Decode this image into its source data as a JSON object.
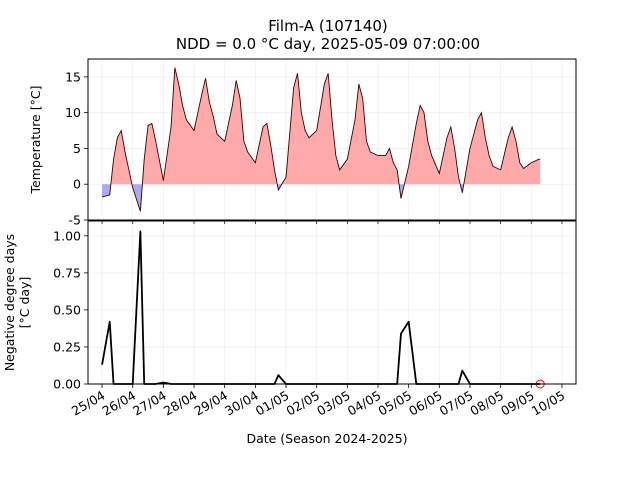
{
  "title": "Film-A (107140)",
  "subtitle": "NDD = 0.0 °C day, 2025-05-09 07:00:00",
  "chart_data": [
    {
      "type": "area",
      "ylabel": "Temperature [°C]",
      "ylim": [
        -5,
        17.5
      ],
      "yticks": [
        -5,
        0,
        5,
        10,
        15
      ],
      "grid": true,
      "fill_colors": {
        "positive": "#ffaaaa",
        "negative": "#aaaaee"
      },
      "x": [
        "2025-04-25 00:00",
        "2025-04-25 06:00",
        "2025-04-25 09:00",
        "2025-04-25 12:00",
        "2025-04-25 15:00",
        "2025-04-25 18:00",
        "2025-04-26 00:00",
        "2025-04-26 06:00",
        "2025-04-26 09:00",
        "2025-04-26 12:00",
        "2025-04-26 15:00",
        "2025-04-26 18:00",
        "2025-04-27 00:00",
        "2025-04-27 06:00",
        "2025-04-27 09:00",
        "2025-04-27 12:00",
        "2025-04-27 15:00",
        "2025-04-27 18:00",
        "2025-04-28 00:00",
        "2025-04-28 06:00",
        "2025-04-28 09:00",
        "2025-04-28 12:00",
        "2025-04-28 15:00",
        "2025-04-28 18:00",
        "2025-04-29 00:00",
        "2025-04-29 06:00",
        "2025-04-29 09:00",
        "2025-04-29 12:00",
        "2025-04-29 15:00",
        "2025-04-29 18:00",
        "2025-04-30 00:00",
        "2025-04-30 06:00",
        "2025-04-30 09:00",
        "2025-04-30 12:00",
        "2025-04-30 15:00",
        "2025-04-30 18:00",
        "2025-05-01 00:00",
        "2025-05-01 06:00",
        "2025-05-01 09:00",
        "2025-05-01 12:00",
        "2025-05-01 15:00",
        "2025-05-01 18:00",
        "2025-05-02 00:00",
        "2025-05-02 06:00",
        "2025-05-02 09:00",
        "2025-05-02 12:00",
        "2025-05-02 15:00",
        "2025-05-02 18:00",
        "2025-05-03 00:00",
        "2025-05-03 06:00",
        "2025-05-03 09:00",
        "2025-05-03 12:00",
        "2025-05-03 15:00",
        "2025-05-03 18:00",
        "2025-05-04 00:00",
        "2025-05-04 06:00",
        "2025-05-04 09:00",
        "2025-05-04 12:00",
        "2025-05-04 15:00",
        "2025-05-04 18:00",
        "2025-05-05 00:00",
        "2025-05-05 06:00",
        "2025-05-05 09:00",
        "2025-05-05 12:00",
        "2025-05-05 15:00",
        "2025-05-05 18:00",
        "2025-05-06 00:00",
        "2025-05-06 06:00",
        "2025-05-06 09:00",
        "2025-05-06 12:00",
        "2025-05-06 15:00",
        "2025-05-06 18:00",
        "2025-05-07 00:00",
        "2025-05-07 06:00",
        "2025-05-07 09:00",
        "2025-05-07 12:00",
        "2025-05-07 15:00",
        "2025-05-07 18:00",
        "2025-05-08 00:00",
        "2025-05-08 06:00",
        "2025-05-08 09:00",
        "2025-05-08 12:00",
        "2025-05-08 15:00",
        "2025-05-08 18:00",
        "2025-05-09 00:00",
        "2025-05-09 06:00",
        "2025-05-09 07:00"
      ],
      "series": [
        {
          "values": [
            -1.8,
            -1.5,
            3.5,
            6.5,
            7.5,
            4.5,
            -0.5,
            -3.8,
            3.5,
            8.2,
            8.5,
            6.0,
            0.5,
            8.0,
            16.3,
            14.0,
            11.0,
            9.0,
            7.5,
            12.5,
            14.8,
            11.5,
            9.5,
            7.0,
            6.0,
            11.0,
            14.5,
            12.0,
            6.0,
            4.5,
            3.0,
            8.0,
            8.5,
            5.5,
            2.0,
            -0.8,
            1.0,
            13.5,
            15.5,
            10.0,
            7.5,
            6.5,
            7.5,
            14.0,
            15.5,
            9.0,
            4.0,
            2.0,
            3.5,
            9.0,
            14.0,
            12.0,
            6.0,
            4.5,
            4.0,
            4.0,
            5.0,
            3.0,
            2.0,
            -2.0,
            2.5,
            8.5,
            11.0,
            10.0,
            6.0,
            4.0,
            1.5,
            6.5,
            8.0,
            5.0,
            1.0,
            -1.2,
            5.0,
            9.0,
            10.0,
            6.5,
            4.0,
            2.5,
            2.0,
            6.5,
            8.0,
            6.0,
            3.0,
            2.2,
            3.0,
            3.5,
            3.5
          ]
        }
      ]
    },
    {
      "type": "line",
      "xlabel": "Date (Season 2024-2025)",
      "ylabel": "Negative degree days\n[°C day]",
      "ylim": [
        0,
        1.1
      ],
      "yticks": [
        "0.00",
        "0.25",
        "0.50",
        "0.75",
        "1.00"
      ],
      "xticks": [
        "25/04",
        "26/04",
        "27/04",
        "28/04",
        "29/04",
        "30/04",
        "01/05",
        "02/05",
        "03/05",
        "04/05",
        "05/05",
        "06/05",
        "07/05",
        "08/05",
        "09/05",
        "10/05"
      ],
      "grid": true,
      "x": [
        "2025-04-25 00:00",
        "2025-04-25 06:00",
        "2025-04-25 09:00",
        "2025-04-25 12:00",
        "2025-04-25 15:00",
        "2025-04-25 18:00",
        "2025-04-26 00:00",
        "2025-04-26 06:00",
        "2025-04-26 09:00",
        "2025-04-26 12:00",
        "2025-04-26 15:00",
        "2025-04-26 18:00",
        "2025-04-27 00:00",
        "2025-04-27 06:00",
        "2025-04-27 09:00",
        "2025-04-27 12:00",
        "2025-04-27 15:00",
        "2025-04-27 18:00",
        "2025-04-28 00:00",
        "2025-04-28 06:00",
        "2025-04-28 09:00",
        "2025-04-28 12:00",
        "2025-04-28 15:00",
        "2025-04-28 18:00",
        "2025-04-29 00:00",
        "2025-04-29 06:00",
        "2025-04-29 09:00",
        "2025-04-29 12:00",
        "2025-04-29 15:00",
        "2025-04-29 18:00",
        "2025-04-30 00:00",
        "2025-04-30 06:00",
        "2025-04-30 09:00",
        "2025-04-30 12:00",
        "2025-04-30 15:00",
        "2025-04-30 18:00",
        "2025-05-01 00:00",
        "2025-05-01 06:00",
        "2025-05-01 09:00",
        "2025-05-01 12:00",
        "2025-05-01 15:00",
        "2025-05-01 18:00",
        "2025-05-02 00:00",
        "2025-05-02 06:00",
        "2025-05-02 09:00",
        "2025-05-02 12:00",
        "2025-05-02 15:00",
        "2025-05-02 18:00",
        "2025-05-03 00:00",
        "2025-05-03 06:00",
        "2025-05-03 09:00",
        "2025-05-03 12:00",
        "2025-05-03 15:00",
        "2025-05-03 18:00",
        "2025-05-04 00:00",
        "2025-05-04 06:00",
        "2025-05-04 09:00",
        "2025-05-04 12:00",
        "2025-05-04 15:00",
        "2025-05-04 18:00",
        "2025-05-05 00:00",
        "2025-05-05 06:00",
        "2025-05-05 09:00",
        "2025-05-05 12:00",
        "2025-05-05 15:00",
        "2025-05-05 18:00",
        "2025-05-06 00:00",
        "2025-05-06 06:00",
        "2025-05-06 09:00",
        "2025-05-06 12:00",
        "2025-05-06 15:00",
        "2025-05-06 18:00",
        "2025-05-07 00:00",
        "2025-05-07 06:00",
        "2025-05-07 09:00",
        "2025-05-07 12:00",
        "2025-05-07 15:00",
        "2025-05-07 18:00",
        "2025-05-08 00:00",
        "2025-05-08 06:00",
        "2025-05-08 09:00",
        "2025-05-08 12:00",
        "2025-05-08 15:00",
        "2025-05-08 18:00",
        "2025-05-09 00:00",
        "2025-05-09 06:00",
        "2025-05-09 07:00"
      ],
      "series": [
        {
          "values": [
            0.13,
            0.42,
            0.0,
            0.0,
            0.0,
            0.0,
            0.0,
            1.03,
            0.0,
            0.0,
            0.0,
            0.0,
            0.01,
            0.0,
            0.0,
            0.0,
            0.0,
            0.0,
            0.0,
            0.0,
            0.0,
            0.0,
            0.0,
            0.0,
            0.0,
            0.0,
            0.0,
            0.0,
            0.0,
            0.0,
            0.0,
            0.0,
            0.0,
            0.0,
            0.0,
            0.06,
            0.0,
            0.0,
            0.0,
            0.0,
            0.0,
            0.0,
            0.0,
            0.0,
            0.0,
            0.0,
            0.0,
            0.0,
            0.0,
            0.0,
            0.0,
            0.0,
            0.0,
            0.0,
            0.0,
            0.0,
            0.0,
            0.0,
            0.0,
            0.34,
            0.42,
            0.0,
            0.0,
            0.0,
            0.0,
            0.0,
            0.0,
            0.0,
            0.0,
            0.0,
            0.0,
            0.09,
            0.0,
            0.0,
            0.0,
            0.0,
            0.0,
            0.0,
            0.0,
            0.0,
            0.0,
            0.0,
            0.0,
            0.0,
            0.0,
            0.0,
            0.0
          ]
        }
      ],
      "current_marker": {
        "x": "2025-05-09 07:00",
        "value": 0.0,
        "color": "#ff0000"
      }
    }
  ]
}
